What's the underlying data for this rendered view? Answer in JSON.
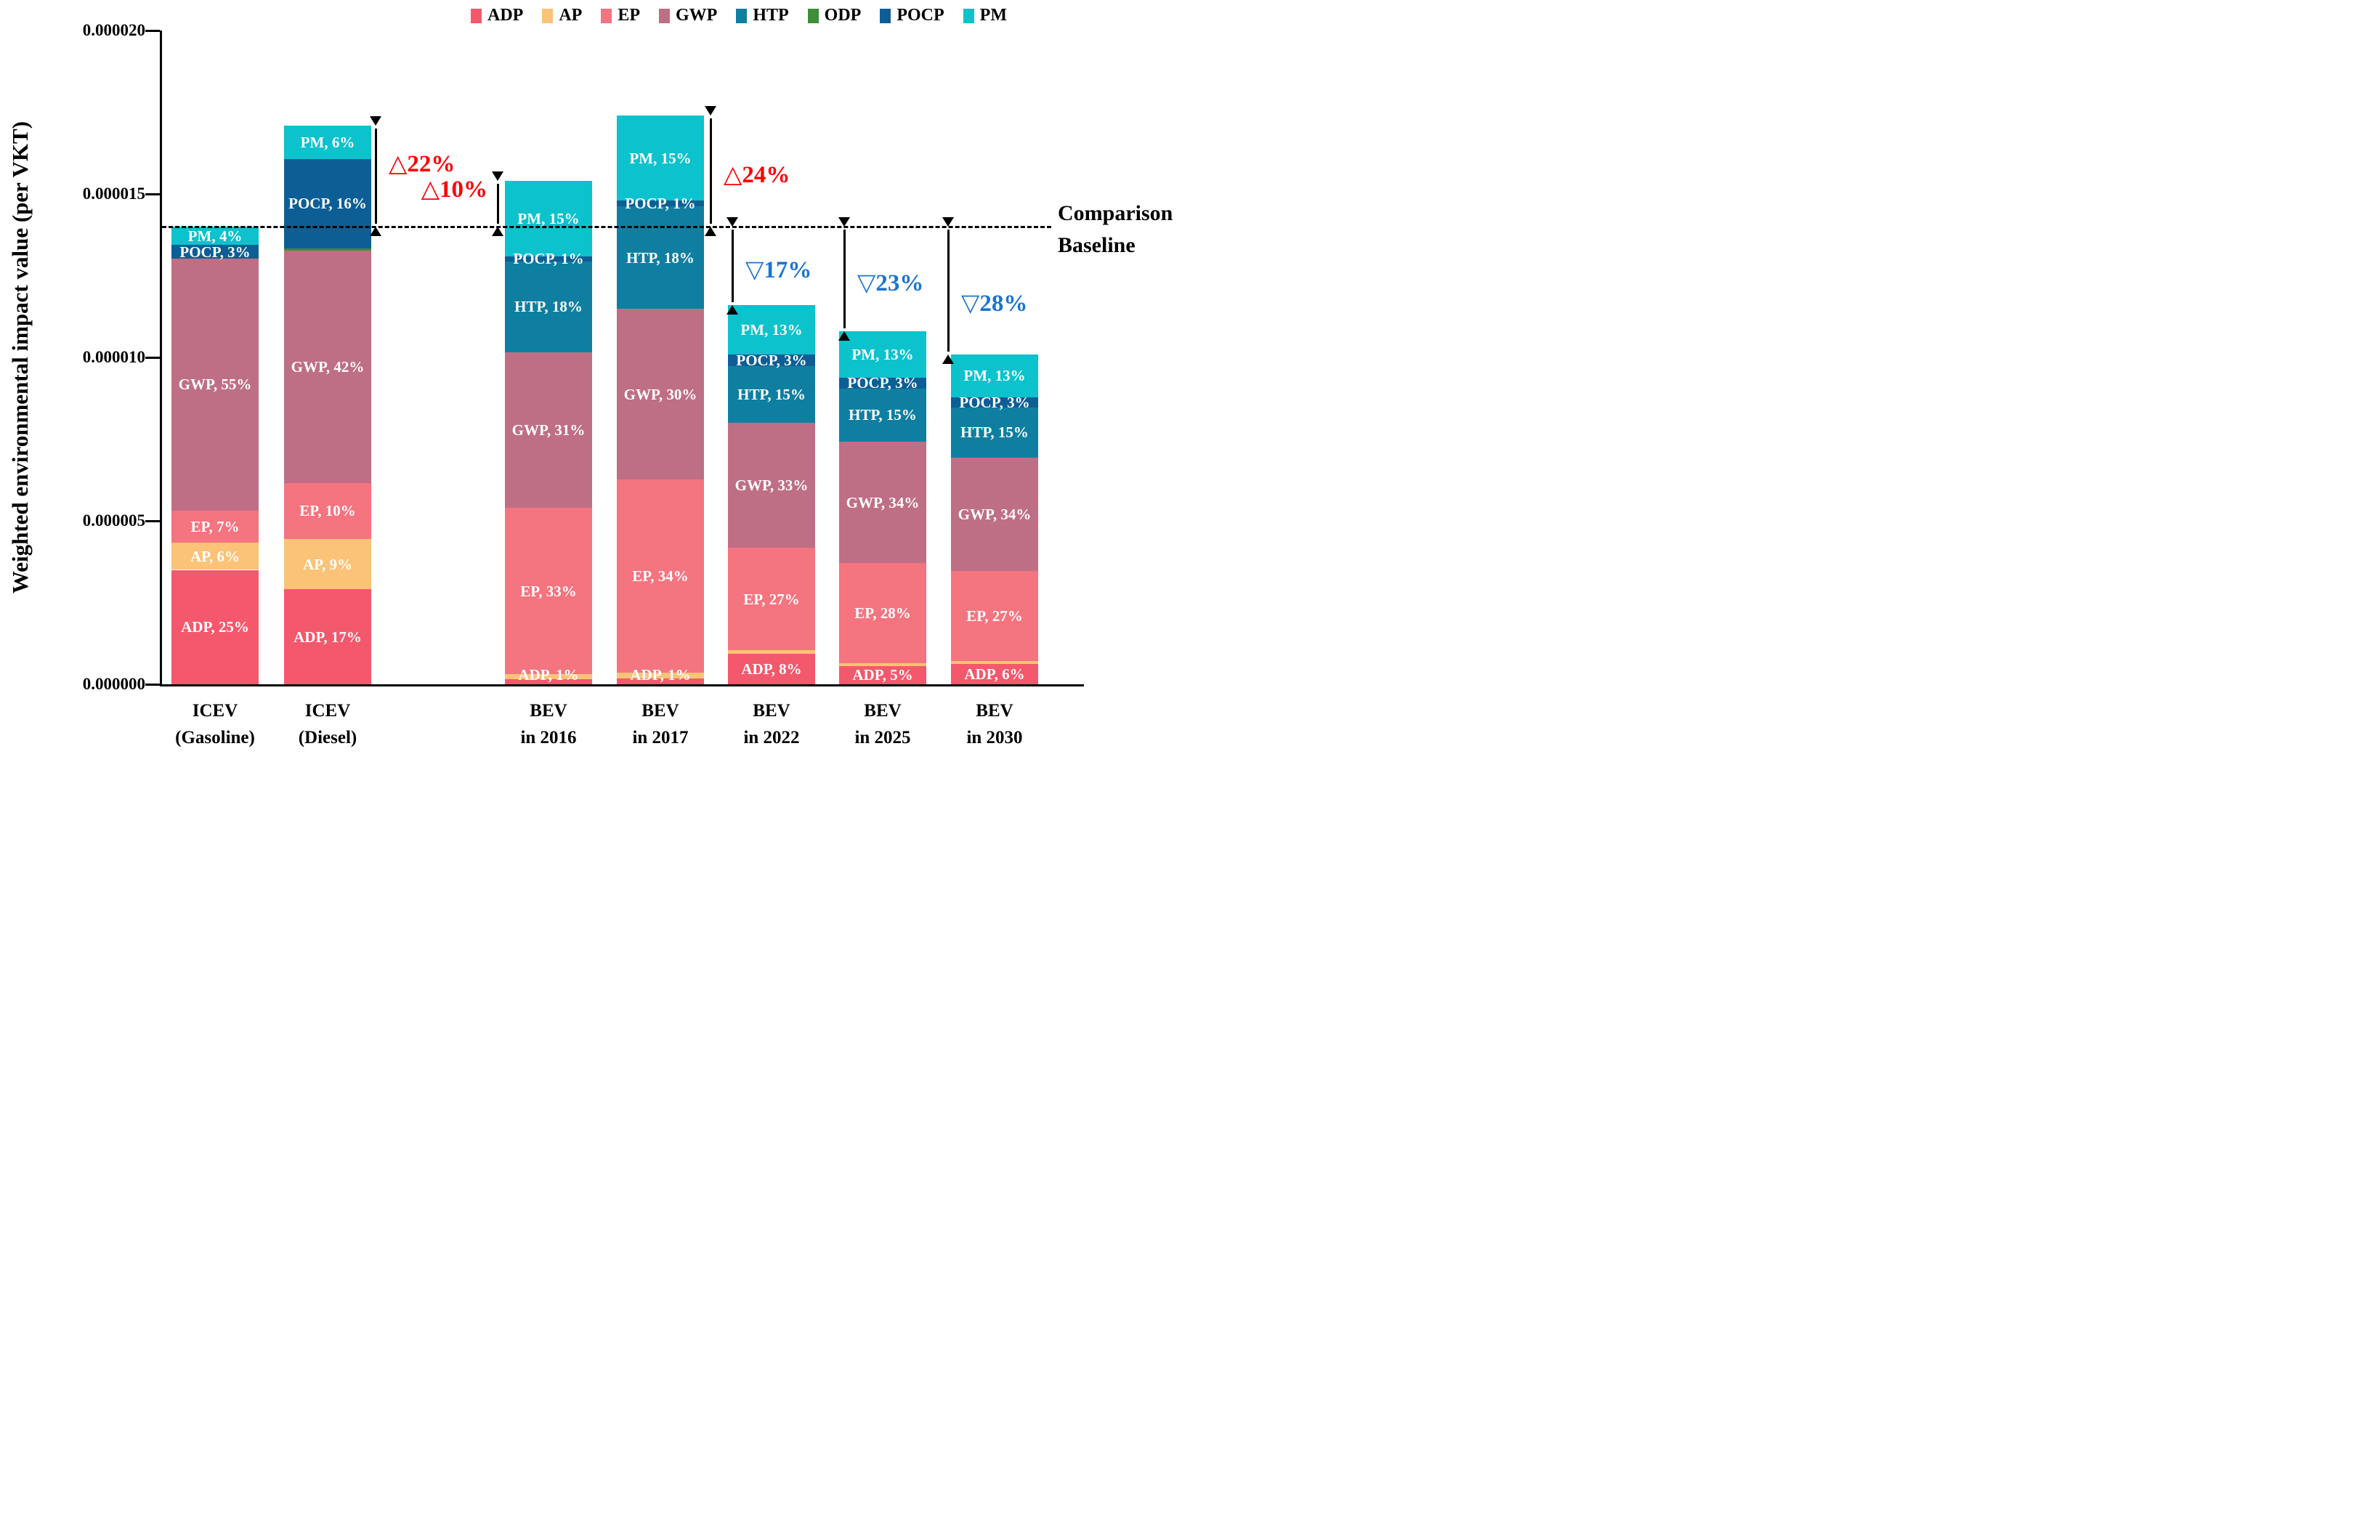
{
  "chart_data": {
    "type": "bar",
    "stacked": true,
    "title": "",
    "ylabel": "Weighted environmental impact value (per VKT)",
    "xlabel": "",
    "grid": false,
    "legend_position": "top",
    "value_unit_micro": 1e-06,
    "ylim_micro": [
      0,
      20
    ],
    "yticks": [
      {
        "label": "0.000000",
        "value_micro": 0
      },
      {
        "label": "0.000005",
        "value_micro": 5
      },
      {
        "label": "0.000010",
        "value_micro": 10
      },
      {
        "label": "0.000015",
        "value_micro": 15
      },
      {
        "label": "0.000020",
        "value_micro": 20
      }
    ],
    "legend": [
      {
        "key": "ADP",
        "color": "#F4586C"
      },
      {
        "key": "AP",
        "color": "#FBC377"
      },
      {
        "key": "EP",
        "color": "#F4747F"
      },
      {
        "key": "GWP",
        "color": "#BE6F85"
      },
      {
        "key": "HTP",
        "color": "#0F7FA1"
      },
      {
        "key": "ODP",
        "color": "#3E8E3A"
      },
      {
        "key": "POCP",
        "color": "#0D5E94"
      },
      {
        "key": "PM",
        "color": "#0CC2CC"
      }
    ],
    "comparison_baseline_micro": 14,
    "baseline_label": [
      "Comparison",
      "Baseline"
    ],
    "bars": [
      {
        "category": [
          "ICEV",
          "(Gasoline)"
        ],
        "total_micro": 14.0,
        "segments": [
          {
            "key": "ADP",
            "pct": 25,
            "label": "ADP, 25%"
          },
          {
            "key": "AP",
            "pct": 6,
            "label": "AP, 6%"
          },
          {
            "key": "EP",
            "pct": 7,
            "label": "EP, 7%"
          },
          {
            "key": "GWP",
            "pct": 55,
            "label": "GWP, 55%"
          },
          {
            "key": "POCP",
            "pct": 3,
            "label": "POCP, 3%"
          },
          {
            "key": "PM",
            "pct": 4,
            "label": "PM, 4%"
          }
        ]
      },
      {
        "category": [
          "ICEV",
          "(Diesel)"
        ],
        "total_micro": 17.1,
        "segments": [
          {
            "key": "ADP",
            "pct": 17,
            "label": "ADP, 17%"
          },
          {
            "key": "AP",
            "pct": 9,
            "label": "AP, 9%"
          },
          {
            "key": "EP",
            "pct": 10,
            "label": "EP, 10%"
          },
          {
            "key": "GWP",
            "pct": 41.6,
            "label": "GWP, 42%"
          },
          {
            "key": "ODP",
            "pct": 0.4,
            "label": ""
          },
          {
            "key": "POCP",
            "pct": 16,
            "label": "POCP, 16%"
          },
          {
            "key": "PM",
            "pct": 6,
            "label": "PM, 6%"
          }
        ]
      },
      {
        "category": [
          "BEV",
          "in 2016"
        ],
        "total_micro": 15.4,
        "segments": [
          {
            "key": "ADP",
            "pct": 1,
            "label": "ADP, 1%"
          },
          {
            "key": "AP",
            "pct": 1,
            "label": ""
          },
          {
            "key": "EP",
            "pct": 33,
            "label": "EP, 33%"
          },
          {
            "key": "GWP",
            "pct": 31,
            "label": "GWP, 31%"
          },
          {
            "key": "HTP",
            "pct": 18,
            "label": "HTP, 18%"
          },
          {
            "key": "POCP",
            "pct": 1,
            "label": "POCP, 1%"
          },
          {
            "key": "PM",
            "pct": 15,
            "label": "PM, 15%"
          }
        ]
      },
      {
        "category": [
          "BEV",
          "in 2017"
        ],
        "total_micro": 17.4,
        "segments": [
          {
            "key": "ADP",
            "pct": 1,
            "label": "ADP, 1%"
          },
          {
            "key": "AP",
            "pct": 1,
            "label": ""
          },
          {
            "key": "EP",
            "pct": 34,
            "label": "EP, 34%"
          },
          {
            "key": "GWP",
            "pct": 30,
            "label": "GWP, 30%"
          },
          {
            "key": "HTP",
            "pct": 18,
            "label": "HTP, 18%"
          },
          {
            "key": "POCP",
            "pct": 1,
            "label": "POCP, 1%"
          },
          {
            "key": "PM",
            "pct": 15,
            "label": "PM, 15%"
          }
        ]
      },
      {
        "category": [
          "BEV",
          "in 2022"
        ],
        "total_micro": 11.6,
        "segments": [
          {
            "key": "ADP",
            "pct": 8,
            "label": "ADP, 8%"
          },
          {
            "key": "AP",
            "pct": 1,
            "label": ""
          },
          {
            "key": "EP",
            "pct": 27,
            "label": "EP, 27%"
          },
          {
            "key": "GWP",
            "pct": 33,
            "label": "GWP, 33%"
          },
          {
            "key": "HTP",
            "pct": 15,
            "label": "HTP, 15%"
          },
          {
            "key": "POCP",
            "pct": 3,
            "label": "POCP, 3%"
          },
          {
            "key": "PM",
            "pct": 13,
            "label": "PM, 13%"
          }
        ]
      },
      {
        "category": [
          "BEV",
          "in 2025"
        ],
        "total_micro": 10.8,
        "segments": [
          {
            "key": "ADP",
            "pct": 5,
            "label": "ADP, 5%"
          },
          {
            "key": "AP",
            "pct": 1,
            "label": ""
          },
          {
            "key": "EP",
            "pct": 28,
            "label": "EP, 28%"
          },
          {
            "key": "GWP",
            "pct": 34,
            "label": "GWP, 34%"
          },
          {
            "key": "HTP",
            "pct": 15,
            "label": "HTP, 15%"
          },
          {
            "key": "POCP",
            "pct": 3,
            "label": "POCP, 3%"
          },
          {
            "key": "PM",
            "pct": 13,
            "label": "PM, 13%"
          }
        ]
      },
      {
        "category": [
          "BEV",
          "in 2030"
        ],
        "total_micro": 10.1,
        "segments": [
          {
            "key": "ADP",
            "pct": 6,
            "label": "ADP, 6%"
          },
          {
            "key": "AP",
            "pct": 1,
            "label": ""
          },
          {
            "key": "EP",
            "pct": 27,
            "label": "EP, 27%"
          },
          {
            "key": "GWP",
            "pct": 34,
            "label": "GWP, 34%"
          },
          {
            "key": "HTP",
            "pct": 15,
            "label": "HTP, 15%"
          },
          {
            "key": "POCP",
            "pct": 3,
            "label": "POCP, 3%"
          },
          {
            "key": "PM",
            "pct": 13,
            "label": "PM, 13%"
          }
        ]
      }
    ],
    "annotations": [
      {
        "bar_index": 1,
        "text": "△22%",
        "color": "#FE0000",
        "direction": "increase",
        "arrow_dx": 66,
        "text_side": "right",
        "text_dy": -16
      },
      {
        "bar_index": 2,
        "text": "△10%",
        "color": "#FE0000",
        "direction": "increase",
        "arrow_dx": -70,
        "text_side": "left",
        "text_dy": -20
      },
      {
        "bar_index": 3,
        "text": "△24%",
        "color": "#FE0000",
        "direction": "increase",
        "arrow_dx": 69,
        "text_side": "right",
        "text_dy": 5
      },
      {
        "bar_index": 4,
        "text": "▽17%",
        "color": "#1B74D1",
        "direction": "decrease",
        "arrow_dx": -54,
        "text_side": "right",
        "text_dy": 6
      },
      {
        "bar_index": 5,
        "text": "▽23%",
        "color": "#1B74D1",
        "direction": "decrease",
        "arrow_dx": -53,
        "text_side": "right",
        "text_dy": 6
      },
      {
        "bar_index": 6,
        "text": "▽28%",
        "color": "#1B74D1",
        "direction": "decrease",
        "arrow_dx": -64,
        "text_side": "right",
        "text_dy": 18
      }
    ]
  }
}
